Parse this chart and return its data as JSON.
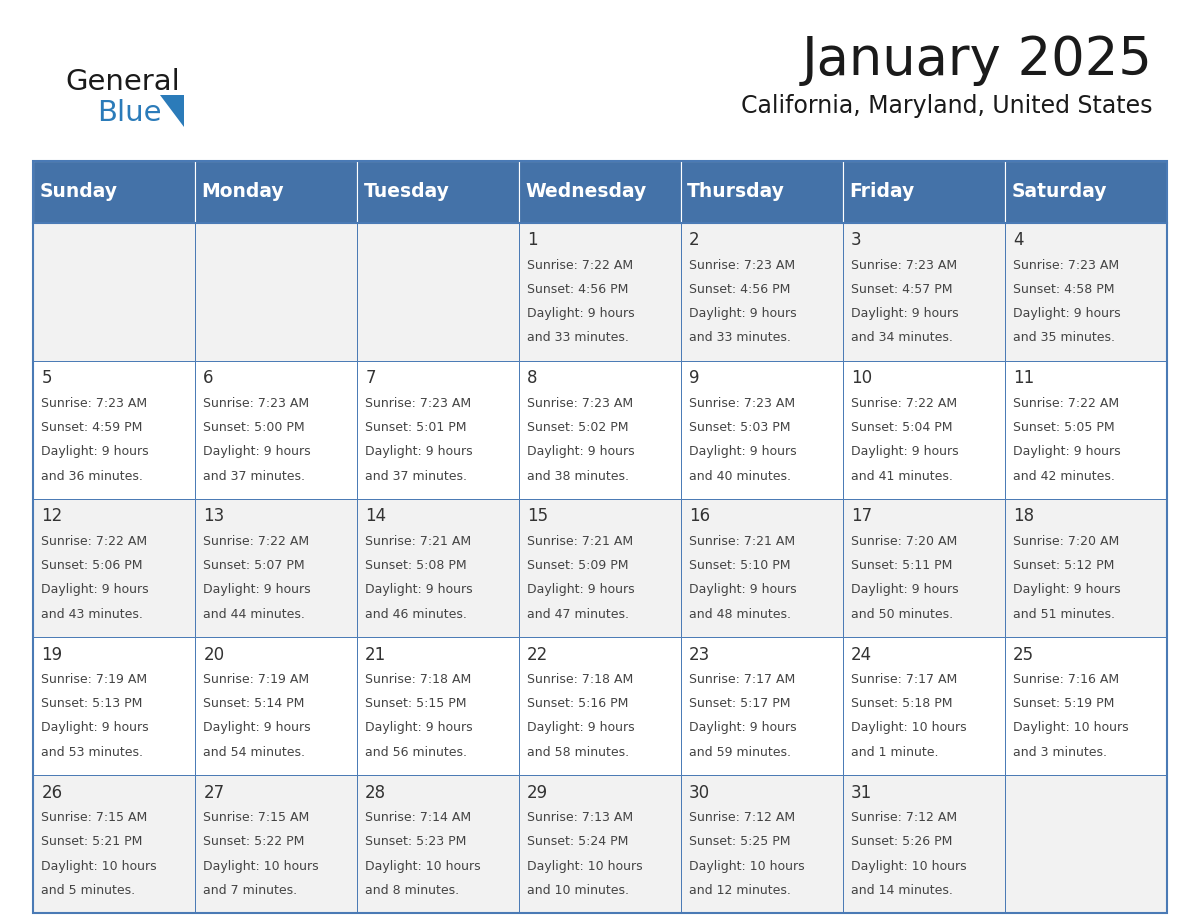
{
  "title": "January 2025",
  "subtitle": "California, Maryland, United States",
  "days_of_week": [
    "Sunday",
    "Monday",
    "Tuesday",
    "Wednesday",
    "Thursday",
    "Friday",
    "Saturday"
  ],
  "header_bg": "#4472A8",
  "header_text_color": "#FFFFFF",
  "row_bg_even": "#F2F2F2",
  "row_bg_odd": "#FFFFFF",
  "cell_border_color": "#4a7ab5",
  "day_number_color": "#333333",
  "text_color": "#444444",
  "logo_general_color": "#1a1a1a",
  "logo_blue_color": "#2b7bb9",
  "logo_triangle_color": "#2b7bb9",
  "title_color": "#1a1a1a",
  "subtitle_color": "#1a1a1a",
  "calendar_data": [
    [
      {
        "day": "",
        "sunrise": "",
        "sunset": "",
        "daylight": ""
      },
      {
        "day": "",
        "sunrise": "",
        "sunset": "",
        "daylight": ""
      },
      {
        "day": "",
        "sunrise": "",
        "sunset": "",
        "daylight": ""
      },
      {
        "day": "1",
        "sunrise": "7:22 AM",
        "sunset": "4:56 PM",
        "daylight": "9 hours and 33 minutes."
      },
      {
        "day": "2",
        "sunrise": "7:23 AM",
        "sunset": "4:56 PM",
        "daylight": "9 hours and 33 minutes."
      },
      {
        "day": "3",
        "sunrise": "7:23 AM",
        "sunset": "4:57 PM",
        "daylight": "9 hours and 34 minutes."
      },
      {
        "day": "4",
        "sunrise": "7:23 AM",
        "sunset": "4:58 PM",
        "daylight": "9 hours and 35 minutes."
      }
    ],
    [
      {
        "day": "5",
        "sunrise": "7:23 AM",
        "sunset": "4:59 PM",
        "daylight": "9 hours and 36 minutes."
      },
      {
        "day": "6",
        "sunrise": "7:23 AM",
        "sunset": "5:00 PM",
        "daylight": "9 hours and 37 minutes."
      },
      {
        "day": "7",
        "sunrise": "7:23 AM",
        "sunset": "5:01 PM",
        "daylight": "9 hours and 37 minutes."
      },
      {
        "day": "8",
        "sunrise": "7:23 AM",
        "sunset": "5:02 PM",
        "daylight": "9 hours and 38 minutes."
      },
      {
        "day": "9",
        "sunrise": "7:23 AM",
        "sunset": "5:03 PM",
        "daylight": "9 hours and 40 minutes."
      },
      {
        "day": "10",
        "sunrise": "7:22 AM",
        "sunset": "5:04 PM",
        "daylight": "9 hours and 41 minutes."
      },
      {
        "day": "11",
        "sunrise": "7:22 AM",
        "sunset": "5:05 PM",
        "daylight": "9 hours and 42 minutes."
      }
    ],
    [
      {
        "day": "12",
        "sunrise": "7:22 AM",
        "sunset": "5:06 PM",
        "daylight": "9 hours and 43 minutes."
      },
      {
        "day": "13",
        "sunrise": "7:22 AM",
        "sunset": "5:07 PM",
        "daylight": "9 hours and 44 minutes."
      },
      {
        "day": "14",
        "sunrise": "7:21 AM",
        "sunset": "5:08 PM",
        "daylight": "9 hours and 46 minutes."
      },
      {
        "day": "15",
        "sunrise": "7:21 AM",
        "sunset": "5:09 PM",
        "daylight": "9 hours and 47 minutes."
      },
      {
        "day": "16",
        "sunrise": "7:21 AM",
        "sunset": "5:10 PM",
        "daylight": "9 hours and 48 minutes."
      },
      {
        "day": "17",
        "sunrise": "7:20 AM",
        "sunset": "5:11 PM",
        "daylight": "9 hours and 50 minutes."
      },
      {
        "day": "18",
        "sunrise": "7:20 AM",
        "sunset": "5:12 PM",
        "daylight": "9 hours and 51 minutes."
      }
    ],
    [
      {
        "day": "19",
        "sunrise": "7:19 AM",
        "sunset": "5:13 PM",
        "daylight": "9 hours and 53 minutes."
      },
      {
        "day": "20",
        "sunrise": "7:19 AM",
        "sunset": "5:14 PM",
        "daylight": "9 hours and 54 minutes."
      },
      {
        "day": "21",
        "sunrise": "7:18 AM",
        "sunset": "5:15 PM",
        "daylight": "9 hours and 56 minutes."
      },
      {
        "day": "22",
        "sunrise": "7:18 AM",
        "sunset": "5:16 PM",
        "daylight": "9 hours and 58 minutes."
      },
      {
        "day": "23",
        "sunrise": "7:17 AM",
        "sunset": "5:17 PM",
        "daylight": "9 hours and 59 minutes."
      },
      {
        "day": "24",
        "sunrise": "7:17 AM",
        "sunset": "5:18 PM",
        "daylight": "10 hours and 1 minute."
      },
      {
        "day": "25",
        "sunrise": "7:16 AM",
        "sunset": "5:19 PM",
        "daylight": "10 hours and 3 minutes."
      }
    ],
    [
      {
        "day": "26",
        "sunrise": "7:15 AM",
        "sunset": "5:21 PM",
        "daylight": "10 hours and 5 minutes."
      },
      {
        "day": "27",
        "sunrise": "7:15 AM",
        "sunset": "5:22 PM",
        "daylight": "10 hours and 7 minutes."
      },
      {
        "day": "28",
        "sunrise": "7:14 AM",
        "sunset": "5:23 PM",
        "daylight": "10 hours and 8 minutes."
      },
      {
        "day": "29",
        "sunrise": "7:13 AM",
        "sunset": "5:24 PM",
        "daylight": "10 hours and 10 minutes."
      },
      {
        "day": "30",
        "sunrise": "7:12 AM",
        "sunset": "5:25 PM",
        "daylight": "10 hours and 12 minutes."
      },
      {
        "day": "31",
        "sunrise": "7:12 AM",
        "sunset": "5:26 PM",
        "daylight": "10 hours and 14 minutes."
      },
      {
        "day": "",
        "sunrise": "",
        "sunset": "",
        "daylight": ""
      }
    ]
  ],
  "fig_width": 11.88,
  "fig_height": 9.18,
  "dpi": 100
}
